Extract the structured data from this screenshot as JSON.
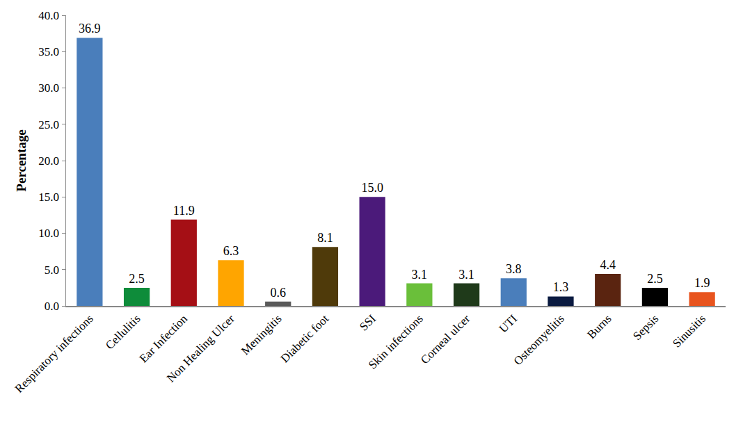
{
  "chart_data": {
    "type": "bar",
    "y_label": "Percentage",
    "categories": [
      "Respiratory infections",
      "Cellulitis",
      "Ear Infection",
      "Non Healing Ulcer",
      "Meningitis",
      "Diabetic foot",
      "SSI",
      "Skin infections",
      "Corneal ulcer",
      "UTI",
      "Osteomyelitis",
      "Burns",
      "Sepsis",
      "Sinusitis"
    ],
    "values": [
      36.9,
      2.5,
      11.9,
      6.3,
      0.6,
      8.1,
      15.0,
      3.1,
      3.1,
      3.8,
      1.3,
      4.4,
      2.5,
      1.9
    ],
    "value_labels": [
      "36.9",
      "2.5",
      "11.9",
      "6.3",
      "0.6",
      "8.1",
      "15.0",
      "3.1",
      "3.1",
      "3.8",
      "1.3",
      "4.4",
      "2.5",
      "1.9"
    ],
    "colors": [
      "#4a7ebb",
      "#0e8c3a",
      "#a50f15",
      "#ffa500",
      "#5a5a5a",
      "#4f3a0a",
      "#4b1a7a",
      "#6abf3a",
      "#1f3a1a",
      "#4a7ebb",
      "#0a1a40",
      "#5a2410",
      "#000000",
      "#e8541e"
    ],
    "ylim": [
      0,
      40
    ],
    "yticks": [
      {
        "value": 0,
        "label": "0.0"
      },
      {
        "value": 5,
        "label": "5.0"
      },
      {
        "value": 10,
        "label": "10.0"
      },
      {
        "value": 15,
        "label": "15.0"
      },
      {
        "value": 20,
        "label": "20.0"
      },
      {
        "value": 25,
        "label": "25.0"
      },
      {
        "value": 30,
        "label": "30.0"
      },
      {
        "value": 35,
        "label": "35.0"
      },
      {
        "value": 40,
        "label": "40.0"
      }
    ],
    "grid": false,
    "data_labels": true
  }
}
